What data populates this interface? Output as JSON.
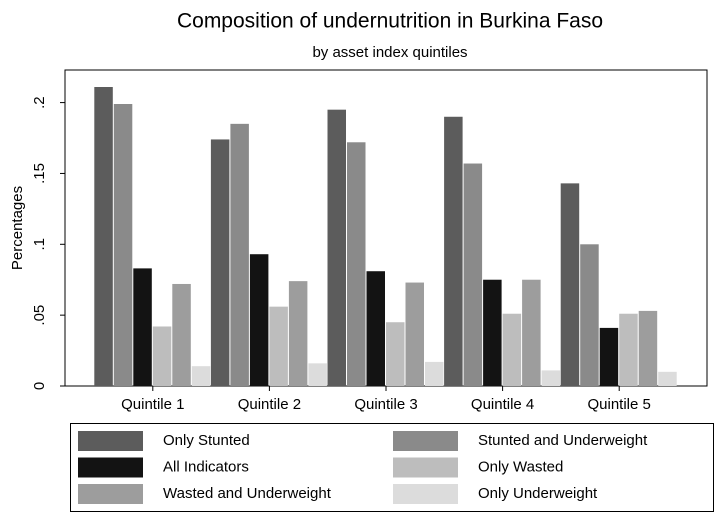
{
  "chart_data": {
    "type": "bar",
    "title": "Composition of undernutrition in Burkina Faso",
    "subtitle": "by asset index quintiles",
    "y_label": "Percentages",
    "categories": [
      "Quintile 1",
      "Quintile 2",
      "Quintile 3",
      "Quintile 4",
      "Quintile 5"
    ],
    "series": [
      {
        "name": "Only Stunted",
        "color": "#5c5c5c",
        "values": [
          0.211,
          0.174,
          0.195,
          0.19,
          0.143
        ]
      },
      {
        "name": "Stunted and Underweight",
        "color": "#8a8a8a",
        "values": [
          0.199,
          0.185,
          0.172,
          0.157,
          0.1
        ]
      },
      {
        "name": "All Indicators",
        "color": "#131313",
        "values": [
          0.083,
          0.093,
          0.081,
          0.075,
          0.041
        ]
      },
      {
        "name": "Only Wasted",
        "color": "#bdbdbd",
        "values": [
          0.042,
          0.056,
          0.045,
          0.051,
          0.051
        ]
      },
      {
        "name": "Wasted and Underweight",
        "color": "#9d9d9d",
        "values": [
          0.072,
          0.074,
          0.073,
          0.075,
          0.053
        ]
      },
      {
        "name": "Only Underweight",
        "color": "#dcdcdc",
        "values": [
          0.014,
          0.016,
          0.017,
          0.011,
          0.01
        ]
      }
    ],
    "ylim": [
      0,
      0.223
    ],
    "yticks": [
      {
        "value": 0,
        "label": "0"
      },
      {
        "value": 0.05,
        "label": ".05"
      },
      {
        "value": 0.1,
        "label": ".1"
      },
      {
        "value": 0.15,
        "label": ".15"
      },
      {
        "value": 0.2,
        "label": ".2"
      }
    ],
    "legend": "bottom"
  }
}
